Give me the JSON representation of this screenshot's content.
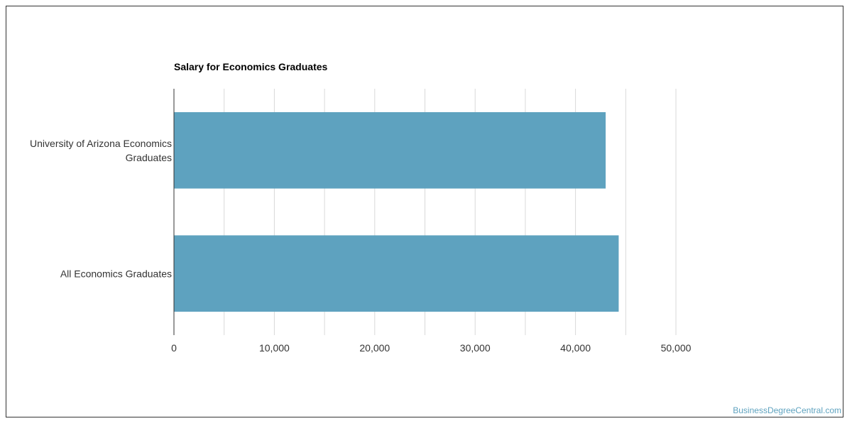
{
  "chart_data": {
    "type": "bar",
    "orientation": "horizontal",
    "title": "Salary for Economics Graduates",
    "categories": [
      [
        "University of Arizona Economics",
        "Graduates"
      ],
      [
        "All Economics Graduates"
      ]
    ],
    "values": [
      43000,
      44300
    ],
    "x_ticks": [
      "0",
      "10,000",
      "20,000",
      "30,000",
      "40,000",
      "50,000"
    ],
    "x_tick_values": [
      0,
      10000,
      20000,
      30000,
      40000,
      50000
    ],
    "xlim": [
      0,
      50000
    ],
    "grid": true,
    "bar_color": "#5ea2bf",
    "grid_color": "#d9d9d9",
    "axis_color": "#333333"
  },
  "watermark": "BusinessDegreeCentral.com"
}
